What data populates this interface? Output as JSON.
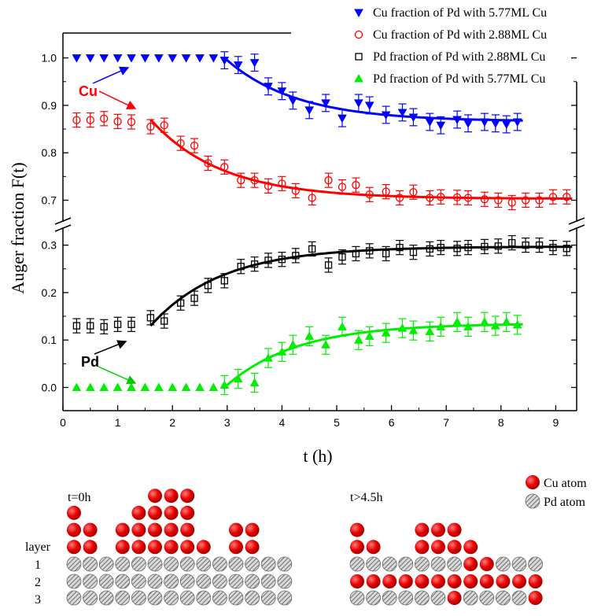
{
  "chart_data": {
    "type": "scatter",
    "xlabel": "t (h)",
    "ylabel": "Auger fraction F(t)",
    "xlim": [
      0,
      9.3
    ],
    "x_ticks": [
      "0",
      "1",
      "2",
      "3",
      "4",
      "5",
      "6",
      "7",
      "8",
      "9"
    ],
    "y_ticks_upper": [
      "0.7",
      "0.8",
      "0.9",
      "1.0"
    ],
    "y_ticks_lower": [
      "0.0",
      "0.1",
      "0.2",
      "0.3"
    ],
    "axis_break": "between 0.3 and 0.7",
    "legend_position": "top-right",
    "series": [
      {
        "name": "Cu fraction of Pd with 5.77ML Cu",
        "marker": "triangle-down-filled",
        "color": "#0000ff",
        "x": [
          0.25,
          0.5,
          0.75,
          1.0,
          1.25,
          1.5,
          1.75,
          2.0,
          2.25,
          2.5,
          2.75,
          2.95,
          3.2,
          3.5,
          3.75,
          4.0,
          4.2,
          4.5,
          4.8,
          5.1,
          5.4,
          5.6,
          5.9,
          6.2,
          6.4,
          6.7,
          6.9,
          7.2,
          7.4,
          7.7,
          7.9,
          8.1,
          8.3
        ],
        "y": [
          1.0,
          1.0,
          1.0,
          1.0,
          1.0,
          1.0,
          1.0,
          1.0,
          1.0,
          1.0,
          1.0,
          0.995,
          0.985,
          0.99,
          0.94,
          0.93,
          0.91,
          0.89,
          0.905,
          0.873,
          0.905,
          0.9,
          0.88,
          0.885,
          0.875,
          0.865,
          0.858,
          0.87,
          0.862,
          0.865,
          0.862,
          0.86,
          0.865
        ],
        "error_from_index": 11,
        "error": 0.018,
        "fit": {
          "type": "exponential-decay",
          "x_start": 2.95,
          "x_end": 8.4,
          "y_start": 1.0,
          "y_inf": 0.866,
          "tau": 1.3
        }
      },
      {
        "name": "Cu fraction of Pd with 2.88ML Cu",
        "marker": "circle-open",
        "color": "#ff0000",
        "x": [
          0.25,
          0.5,
          0.75,
          1.0,
          1.25,
          1.6,
          1.85,
          2.15,
          2.4,
          2.65,
          2.95,
          3.25,
          3.5,
          3.75,
          4.0,
          4.25,
          4.55,
          4.85,
          5.1,
          5.35,
          5.6,
          5.9,
          6.15,
          6.4,
          6.7,
          6.9,
          7.2,
          7.4,
          7.7,
          7.95,
          8.2,
          8.45,
          8.7,
          8.95,
          9.2
        ],
        "y": [
          0.869,
          0.869,
          0.872,
          0.866,
          0.865,
          0.855,
          0.858,
          0.82,
          0.815,
          0.778,
          0.77,
          0.742,
          0.742,
          0.73,
          0.735,
          0.72,
          0.705,
          0.742,
          0.728,
          0.732,
          0.712,
          0.718,
          0.705,
          0.717,
          0.705,
          0.707,
          0.706,
          0.705,
          0.702,
          0.7,
          0.695,
          0.7,
          0.7,
          0.707,
          0.707
        ],
        "error_from_index": 0,
        "error": 0.015,
        "fit": {
          "type": "exponential-decay",
          "x_start": 1.6,
          "x_end": 9.3,
          "y_start": 0.87,
          "y_inf": 0.703,
          "tau": 1.3
        }
      },
      {
        "name": "Pd fraction of Pd with 2.88ML Cu",
        "marker": "square-open",
        "color": "#000000",
        "x": [
          0.25,
          0.5,
          0.75,
          1.0,
          1.25,
          1.6,
          1.85,
          2.15,
          2.4,
          2.65,
          2.95,
          3.25,
          3.5,
          3.75,
          4.0,
          4.25,
          4.55,
          4.85,
          5.1,
          5.35,
          5.6,
          5.9,
          6.15,
          6.4,
          6.7,
          6.9,
          7.2,
          7.4,
          7.7,
          7.95,
          8.2,
          8.45,
          8.7,
          8.95,
          9.2
        ],
        "y": [
          0.13,
          0.13,
          0.128,
          0.133,
          0.133,
          0.147,
          0.14,
          0.178,
          0.188,
          0.215,
          0.225,
          0.255,
          0.26,
          0.268,
          0.27,
          0.278,
          0.292,
          0.258,
          0.275,
          0.282,
          0.288,
          0.282,
          0.295,
          0.285,
          0.292,
          0.295,
          0.293,
          0.295,
          0.297,
          0.298,
          0.305,
          0.3,
          0.3,
          0.295,
          0.293
        ],
        "error_from_index": 0,
        "error": 0.015,
        "fit": {
          "type": "exponential-rise",
          "x_start": 1.6,
          "x_end": 9.3,
          "y_start": 0.13,
          "y_inf": 0.297,
          "tau": 1.3
        }
      },
      {
        "name": "Pd fraction of Pd with 5.77ML Cu",
        "marker": "triangle-up-filled",
        "color": "#00ee00",
        "x": [
          0.25,
          0.5,
          0.75,
          1.0,
          1.25,
          1.5,
          1.75,
          2.0,
          2.25,
          2.5,
          2.75,
          2.95,
          3.2,
          3.5,
          3.75,
          4.0,
          4.2,
          4.5,
          4.8,
          5.1,
          5.4,
          5.6,
          5.9,
          6.2,
          6.4,
          6.7,
          6.9,
          7.2,
          7.4,
          7.7,
          7.9,
          8.1,
          8.3
        ],
        "y": [
          0,
          0,
          0,
          0,
          0,
          0,
          0,
          0,
          0,
          0,
          0,
          0.005,
          0.018,
          0.01,
          0.062,
          0.075,
          0.09,
          0.108,
          0.09,
          0.128,
          0.1,
          0.108,
          0.115,
          0.125,
          0.12,
          0.118,
          0.128,
          0.138,
          0.128,
          0.138,
          0.13,
          0.138,
          0.132
        ],
        "error_from_index": 11,
        "error": 0.02,
        "fit": {
          "type": "exponential-rise",
          "x_start": 2.95,
          "x_end": 8.4,
          "y_start": 0.0,
          "y_inf": 0.135,
          "tau": 1.3
        }
      }
    ],
    "annotations": [
      {
        "text": "Cu",
        "color": "#ff0000"
      },
      {
        "text": "Pd",
        "color": "#000000"
      }
    ]
  },
  "schematic": {
    "panel_left_title": "t=0h",
    "panel_right_title": "t>4.5h",
    "layer_label": "layer",
    "layer_numbers": [
      "1",
      "2",
      "3"
    ],
    "legend": [
      {
        "label": "Cu atom",
        "color": "#ee0000"
      },
      {
        "label": "Pd atom",
        "color": "#c8c8c8"
      }
    ]
  }
}
